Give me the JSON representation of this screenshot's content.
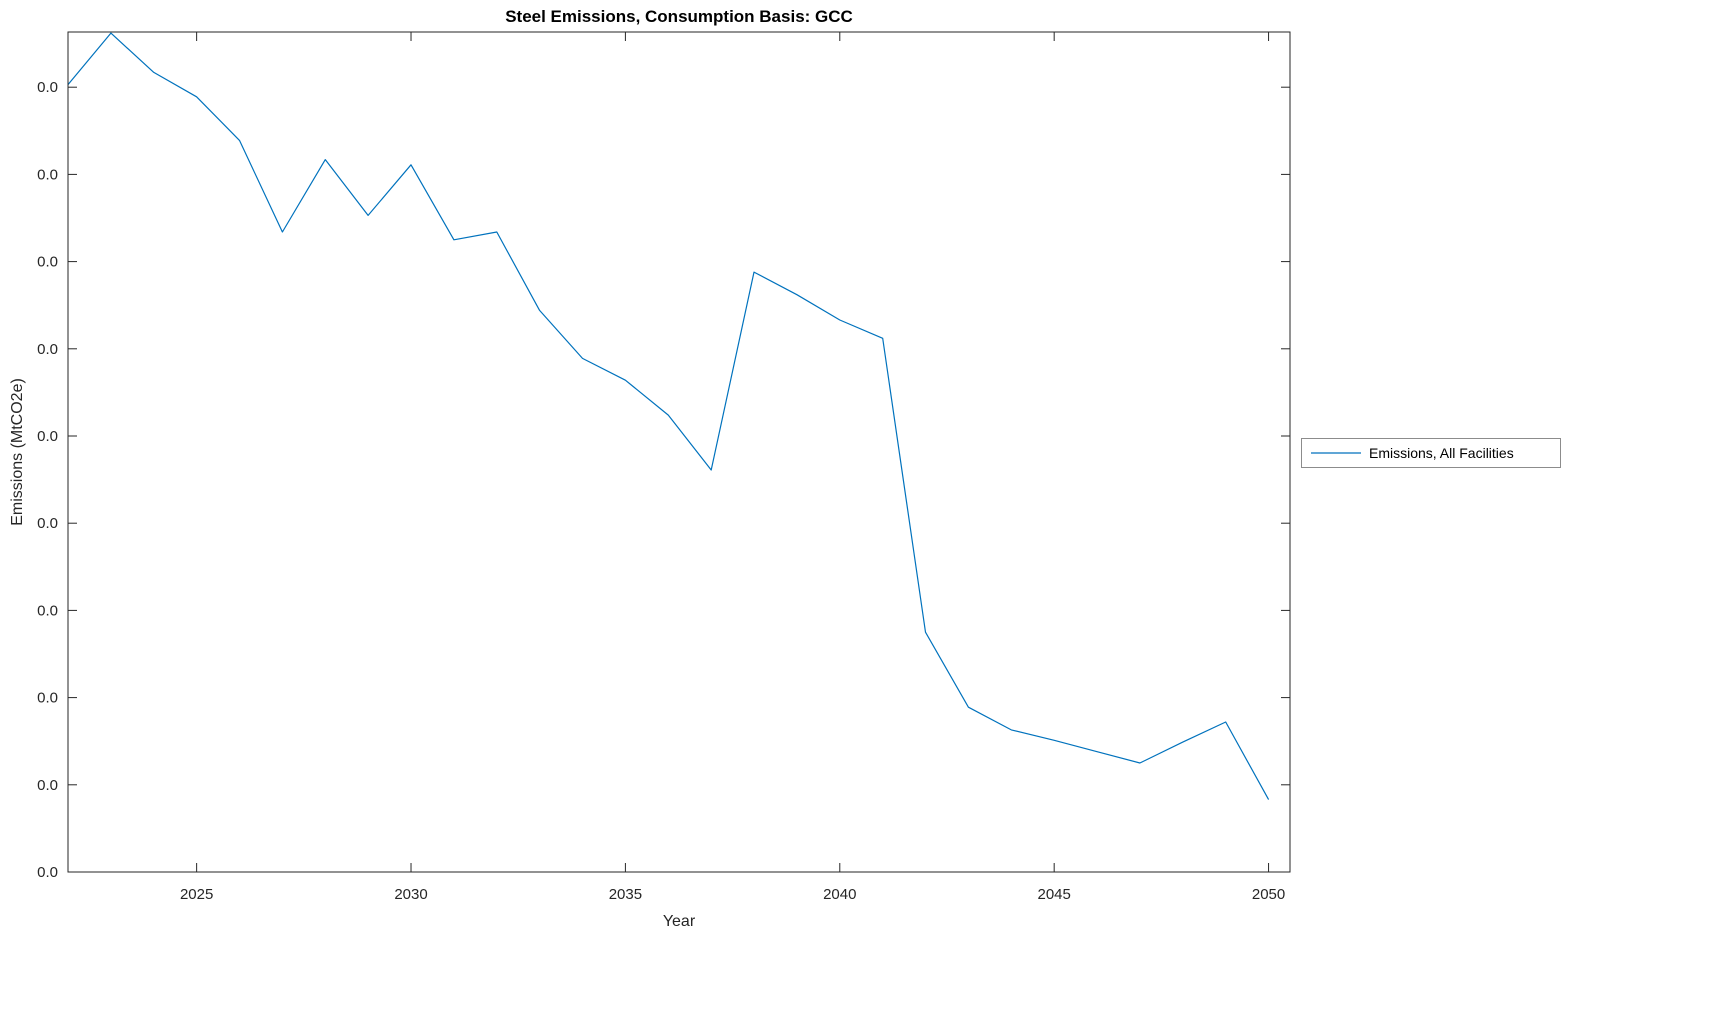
{
  "title": "Steel Emissions, Consumption Basis: GCC",
  "axes": {
    "xlabel": "Year",
    "ylabel": "Emissions (MtCO2e)"
  },
  "legend": {
    "items": [
      {
        "label": "Emissions, All Facilities",
        "color": "#0072BD"
      }
    ]
  },
  "chart_data": {
    "type": "line",
    "title": "Steel Emissions, Consumption Basis: GCC",
    "xlabel": "Year",
    "ylabel": "Emissions (MtCO2e)",
    "x": [
      2022,
      2023,
      2024,
      2025,
      2026,
      2027,
      2028,
      2029,
      2030,
      2031,
      2032,
      2033,
      2034,
      2035,
      2036,
      2037,
      2038,
      2039,
      2040,
      2041,
      2042,
      2043,
      2044,
      2045,
      2046,
      2047,
      2048,
      2049,
      2050
    ],
    "series": [
      {
        "name": "Emissions, All Facilities",
        "color": "#0072BD",
        "values": [
          9.03,
          9.62,
          9.17,
          8.89,
          8.39,
          7.34,
          8.17,
          7.53,
          8.11,
          7.25,
          7.34,
          6.44,
          5.89,
          5.64,
          5.24,
          4.61,
          6.88,
          6.62,
          6.33,
          6.12,
          2.75,
          1.89,
          1.63,
          1.51,
          1.38,
          1.25,
          1.49,
          1.72,
          0.83
        ]
      }
    ],
    "xlim": [
      2022,
      2050.5
    ],
    "ylim": [
      0,
      9.633
    ],
    "x_ticks": {
      "values": [
        2025,
        2030,
        2035,
        2040,
        2045,
        2050
      ],
      "labels": [
        "2025",
        "2030",
        "2035",
        "2040",
        "2045",
        "2050"
      ]
    },
    "y_ticks": {
      "values": [
        0,
        1,
        2,
        3,
        4,
        5,
        6,
        7,
        8,
        9
      ],
      "labels": [
        "0.0",
        "0.0",
        "0.0",
        "0.0",
        "0.0",
        "0.0",
        "0.0",
        "0.0",
        "0.0",
        "0.0"
      ]
    },
    "grid": false,
    "legend_position": "outside-right",
    "line_color": "#0072BD",
    "value_units_note": "All y-axis tick labels display 0.0; series values are estimated in axis tick units (1 unit = spacing between adjacent y-axis ticks)."
  }
}
